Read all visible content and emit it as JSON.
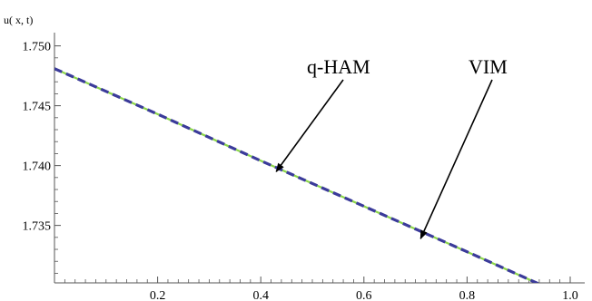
{
  "chart_data": {
    "type": "line",
    "title": "",
    "xlabel": "",
    "ylabel": "u( x, t)",
    "xlim": [
      0,
      1.0
    ],
    "ylim": [
      1.7302,
      1.7505
    ],
    "xticks": [
      "0.2",
      "0.4",
      "0.6",
      "0.8",
      "1.0"
    ],
    "yticks": [
      "1.735",
      "1.740",
      "1.745",
      "1.750"
    ],
    "grid": false,
    "series": [
      {
        "name": "VIM",
        "color": "#8cd64a",
        "x": [
          0,
          0.2,
          0.4,
          0.6,
          0.8,
          0.94
        ],
        "y": [
          1.7481,
          1.7443,
          1.7404,
          1.7366,
          1.7328,
          1.7301
        ]
      },
      {
        "name": "q-HAM",
        "color": "#3b3b9a",
        "x": [
          0,
          0.2,
          0.4,
          0.6,
          0.8,
          0.94
        ],
        "y": [
          1.7481,
          1.7443,
          1.7404,
          1.7366,
          1.7328,
          1.7301
        ]
      }
    ],
    "annotations": [
      {
        "text": "q-HAM",
        "x": 0.43,
        "y": 1.7395
      },
      {
        "text": "VIM",
        "x": 0.71,
        "y": 1.7339
      }
    ]
  }
}
